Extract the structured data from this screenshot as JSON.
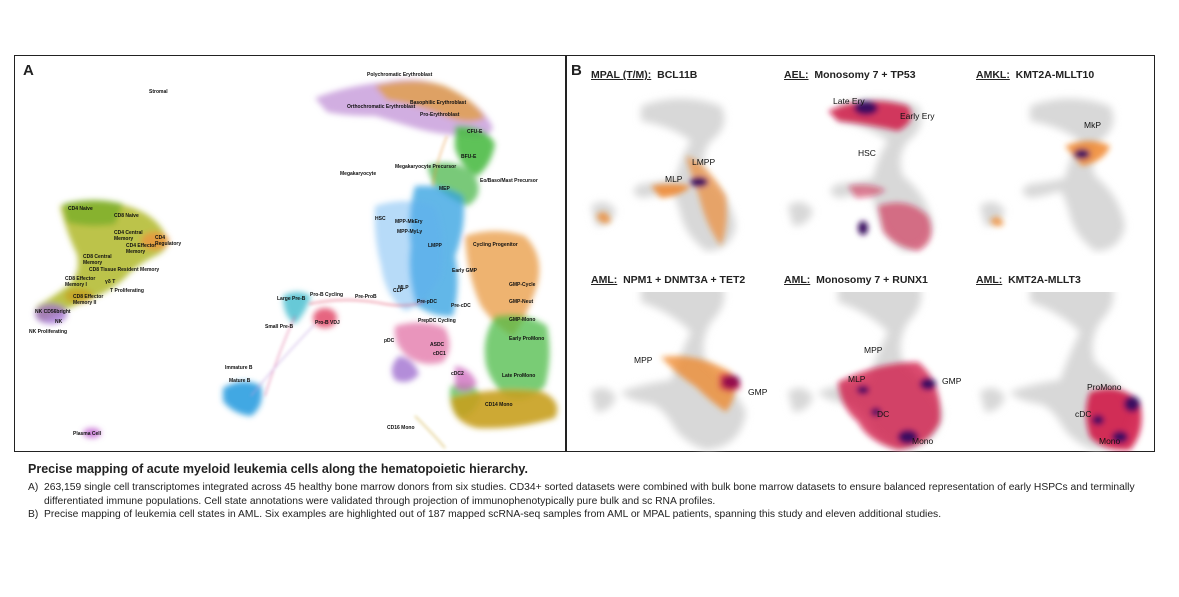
{
  "panel_a": {
    "letter": "A",
    "labels": {
      "stromal": "Stromal",
      "polychromatic_ery": "Polychromatic Erythroblast",
      "basophilic_ery": "Basophilic Erythroblast",
      "orthochromatic_ery": "Orthochromatic Erythroblast",
      "pro_erythroblast": "Pro-Erythroblast",
      "cfu_e": "CFU-E",
      "bfu_e": "BFU-E",
      "megakaryocyte_precursor": "Megakaryocyte Precursor",
      "megakaryocyte": "Megakaryocyte",
      "eo_baso_mast": "Eo/Baso/Mast Precursor",
      "mep": "MEP",
      "hsc": "HSC",
      "mpp_mkery": "MPP-MkEry",
      "mpp_myly": "MPP-MyLy",
      "lmpp": "LMPP",
      "cycling_progenitor": "Cycling Progenitor",
      "early_gmp": "Early GMP",
      "gmp_cycle": "GMP-Cycle",
      "gmp_neut": "GMP-Neut",
      "gmp_mono": "GMP-Mono",
      "early_promono": "Early ProMono",
      "late_promono": "Late ProMono",
      "cd14_mono": "CD14 Mono",
      "cd16_mono": "CD16 Mono",
      "mlp": "MLP",
      "pre_pdc": "Pre-pDC",
      "pre_cdc": "Pre-cDC",
      "prepdc_cycling": "PrepDC Cycling",
      "asdc": "ASDC",
      "cdc1": "cDC1",
      "cdc2": "cDC2",
      "pdc": "pDC",
      "clp": "CLP",
      "pre_prob": "Pre-ProB",
      "large_pre_b": "Large Pre-B",
      "pro_b_cycling": "Pro-B Cycling",
      "pro_b_vdj": "Pro-B VDJ",
      "small_pre_b": "Small Pre-B",
      "immature_b": "Immature B",
      "mature_b": "Mature B",
      "plasma_cell": "Plasma Cell",
      "cd4_naive": "CD4 Naive",
      "cd8_naive": "CD8 Naive",
      "cd4_cm": "CD4 Central Memory",
      "cd4_em": "CD4 Effector Memory",
      "cd4_treg": "CD4 Regulatory",
      "cd8_cm": "CD8 Central Memory",
      "cd8_trm": "CD8 Tissue Resident Memory",
      "cd8_em": "CD8 Effector Memory I",
      "gd_t": "γδ T",
      "t_prolif": "T Proliferating",
      "cd8_em2": "CD8 Effector Memory II",
      "nk_cd56bright": "NK CD56bright",
      "nk": "NK",
      "nk_prolif": "NK Proliferating"
    }
  },
  "panel_b": {
    "letter": "B",
    "subpanels": [
      {
        "prefix": "MPAL (T/M):",
        "suffix": "BCL11B",
        "labels": [
          "LMPP",
          "MLP"
        ]
      },
      {
        "prefix": "AEL:",
        "suffix": "Monosomy 7 + TP53",
        "labels": [
          "Late Ery",
          "Early Ery",
          "HSC"
        ]
      },
      {
        "prefix": "AMKL:",
        "suffix": "KMT2A-MLLT10",
        "labels": [
          "MkP"
        ]
      },
      {
        "prefix": "AML:",
        "suffix": "NPM1 + DNMT3A + TET2",
        "labels": [
          "MPP",
          "GMP"
        ]
      },
      {
        "prefix": "AML:",
        "suffix": "Monosomy 7 + RUNX1",
        "labels": [
          "MPP",
          "MLP",
          "GMP",
          "DC",
          "Mono"
        ]
      },
      {
        "prefix": "AML:",
        "suffix": "KMT2A-MLLT3",
        "labels": [
          "ProMono",
          "cDC",
          "Mono"
        ]
      }
    ]
  },
  "caption": {
    "title": "Precise mapping of acute myeloid leukemia cells along the hematopoietic hierarchy.",
    "items": [
      {
        "key": "A)",
        "text": "263,159 single cell transcriptomes integrated across 45 healthy bone marrow donors from six studies. CD34+ sorted datasets were combined with bulk bone marrow datasets to ensure balanced representation of early HSPCs and terminally differentiated immune populations. Cell state annotations were validated through projection of immunophenotypically pure bulk and sc RNA profiles."
      },
      {
        "key": "B)",
        "text": "Precise mapping of leukemia cell states in AML. Six examples are highlighted out of 187 mapped scRNA-seq samples from AML or MPAL patients, spanning this study and eleven additional studies."
      }
    ]
  },
  "colors": {
    "erythroid": "#c9a0dc",
    "erythroid_orange": "#e0a050",
    "green": "#4cbb47",
    "blue": "#2f9fe0",
    "orange": "#e89a40",
    "gold": "#c8a020",
    "tcell_olive": "#a8b030",
    "density_dark": "#3a1060",
    "density_red": "#d01040",
    "density_orange": "#f08020",
    "background_gray": "#d8d8d8"
  }
}
